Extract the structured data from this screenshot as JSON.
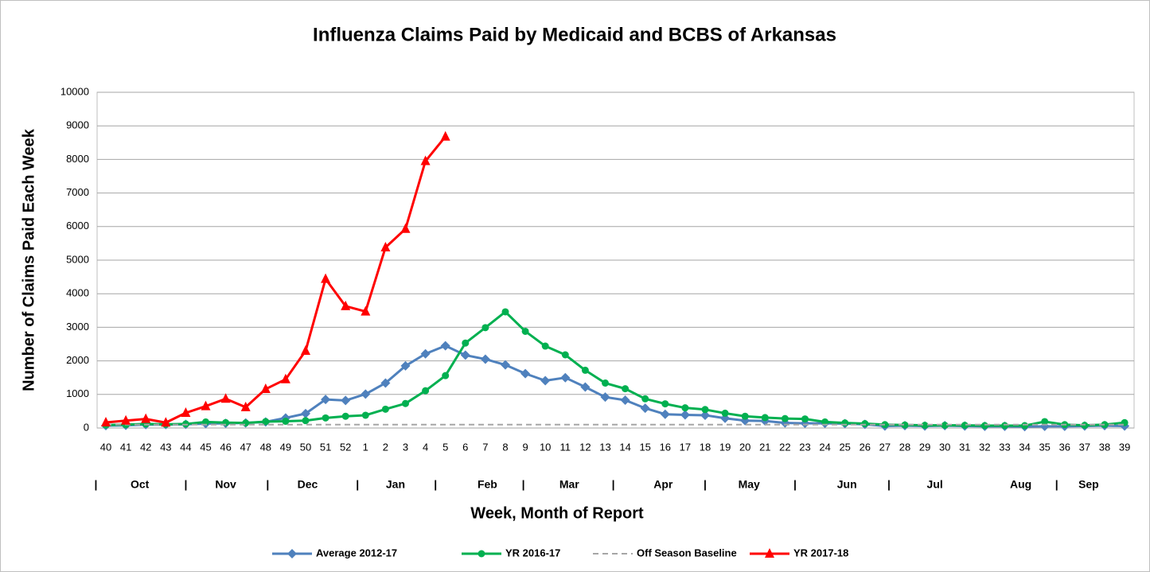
{
  "chart_data": {
    "type": "line",
    "title": "Influenza Claims Paid by Medicaid and BCBS of Arkansas",
    "x_label": "Week, Month of Report",
    "y_label": "Number of Claims Paid Each Week",
    "categories": [
      "40",
      "41",
      "42",
      "43",
      "44",
      "45",
      "46",
      "47",
      "48",
      "49",
      "50",
      "51",
      "52",
      "1",
      "2",
      "3",
      "4",
      "5",
      "6",
      "7",
      "8",
      "9",
      "10",
      "11",
      "12",
      "13",
      "14",
      "15",
      "16",
      "17",
      "18",
      "19",
      "20",
      "21",
      "22",
      "23",
      "24",
      "25",
      "26",
      "27",
      "28",
      "29",
      "30",
      "31",
      "32",
      "33",
      "34",
      "35",
      "36",
      "37",
      "38",
      "39"
    ],
    "months": [
      "Oct",
      "Nov",
      "Dec",
      "Jan",
      "Feb",
      "Mar",
      "Apr",
      "May",
      "Jun",
      "Jul",
      "Aug",
      "Sep"
    ],
    "month_separator": "|",
    "ylim": [
      0,
      10000
    ],
    "yticks": [
      0,
      1000,
      2000,
      3000,
      4000,
      5000,
      6000,
      7000,
      8000,
      9000,
      10000
    ],
    "grid": true,
    "legend": "bottom",
    "series": [
      {
        "name": "Average 2012-17",
        "color": "#4f81bd",
        "marker": "diamond",
        "values": [
          70,
          80,
          100,
          100,
          110,
          130,
          140,
          150,
          180,
          300,
          430,
          850,
          820,
          1010,
          1340,
          1850,
          2210,
          2450,
          2170,
          2050,
          1880,
          1620,
          1410,
          1500,
          1220,
          920,
          830,
          590,
          410,
          390,
          380,
          290,
          220,
          210,
          150,
          140,
          140,
          130,
          110,
          60,
          70,
          60,
          70,
          60,
          50,
          50,
          40,
          50,
          50,
          60,
          70,
          60
        ]
      },
      {
        "name": "YR 2016-17",
        "color": "#00b050",
        "marker": "circle",
        "values": [
          90,
          100,
          120,
          110,
          120,
          180,
          160,
          150,
          190,
          200,
          220,
          300,
          350,
          380,
          560,
          730,
          1110,
          1560,
          2530,
          2990,
          3460,
          2880,
          2440,
          2180,
          1720,
          1340,
          1170,
          870,
          720,
          600,
          550,
          440,
          350,
          310,
          280,
          270,
          180,
          150,
          130,
          100,
          90,
          80,
          80,
          80,
          70,
          70,
          70,
          190,
          100,
          80,
          100,
          160
        ]
      },
      {
        "name": "Off Season Baseline",
        "color": "#a6a6a6",
        "marker": "none",
        "dashed": true,
        "values": [
          100,
          100,
          100,
          100,
          100,
          100,
          100,
          100,
          100,
          100,
          100,
          100,
          100,
          100,
          100,
          100,
          100,
          100,
          100,
          100,
          100,
          100,
          100,
          100,
          100,
          100,
          100,
          100,
          100,
          100,
          100,
          100,
          100,
          100,
          100,
          100,
          100,
          100,
          100,
          100,
          100,
          100,
          100,
          100,
          100,
          100,
          100,
          100,
          100,
          100,
          100,
          100
        ]
      },
      {
        "name": "YR 2017-18",
        "color": "#ff0000",
        "marker": "triangle",
        "values": [
          167,
          220,
          270,
          160,
          450,
          650,
          870,
          620,
          1160,
          1450,
          2300,
          4440,
          3630,
          3470,
          5380,
          5930,
          7950,
          8680,
          null,
          null,
          null,
          null,
          null,
          null,
          null,
          null,
          null,
          null,
          null,
          null,
          null,
          null,
          null,
          null,
          null,
          null,
          null,
          null,
          null,
          null,
          null,
          null,
          null,
          null,
          null,
          null,
          null,
          null,
          null,
          null,
          null,
          null
        ]
      }
    ]
  }
}
